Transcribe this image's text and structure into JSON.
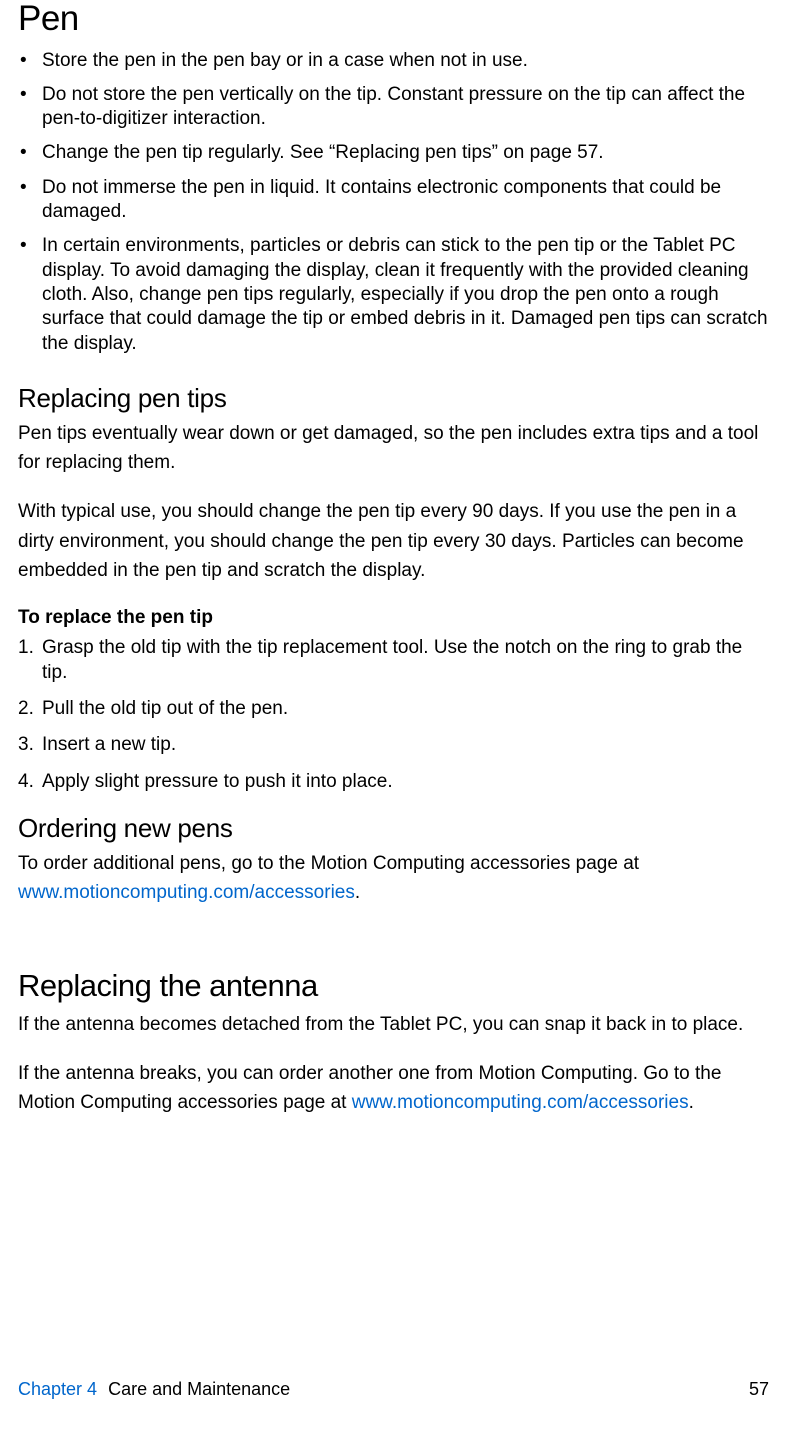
{
  "colors": {
    "link": "#0066cc",
    "text": "#000000",
    "background": "#ffffff"
  },
  "heading_pen": "Pen",
  "bullets_pen": [
    "Store the pen in the pen bay or in a case when not in use.",
    "Do not store the pen vertically on the tip. Constant pressure on the tip can affect the pen-to-digitizer interaction.",
    "Change the pen tip regularly. See “Replacing pen tips” on page 57.",
    "Do not immerse the pen in liquid. It contains electronic components that could be damaged.",
    "In certain environments, particles or debris can stick to the pen tip or the Tablet PC display. To avoid damaging the display, clean it frequently with the provided cleaning cloth. Also, change pen tips regularly, especially if you drop the pen onto a rough surface that could damage the tip or embed debris in it. Damaged pen tips can scratch the display."
  ],
  "heading_replacing_tips": "Replacing pen tips",
  "replacing_tips_p1": "Pen tips eventually wear down or get damaged, so the pen includes extra tips and a tool for replacing them.",
  "replacing_tips_p2": "With typical use, you should change the pen tip every 90 days. If you use the pen in a dirty environment, you should change the pen tip every 30 days. Particles can become embedded in the pen tip and scratch the display.",
  "steps_heading": "To replace the pen tip",
  "steps": [
    "Grasp the old tip with the tip replacement tool. Use the notch on the ring to grab the tip.",
    "Pull the old tip out of the pen.",
    "Insert a new tip.",
    "Apply slight pressure to push it into place."
  ],
  "heading_ordering": "Ordering new pens",
  "ordering_text_before": "To order additional pens, go to the Motion Computing accessories page at ",
  "ordering_link": "www.motioncomputing.com/accessories",
  "ordering_text_after": ".",
  "heading_antenna": "Replacing the antenna",
  "antenna_p1": "If the antenna becomes detached from the Tablet PC, you can snap it back in to place.",
  "antenna_p2_before": "If the antenna breaks, you can order another one from Motion Computing. Go to the Motion Computing accessories page at ",
  "antenna_link": "www.motioncomputing.com/accessories",
  "antenna_p2_after": ".",
  "footer": {
    "chapter": "Chapter 4",
    "title": "Care and Maintenance",
    "page": "57"
  }
}
